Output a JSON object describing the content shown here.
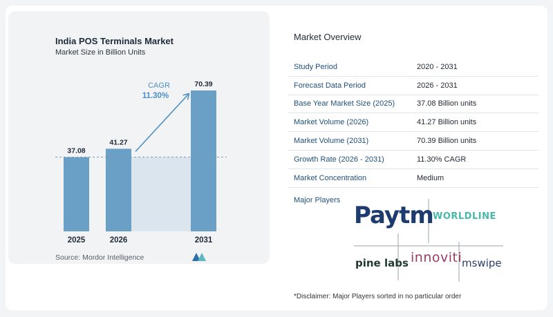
{
  "chart_data": {
    "type": "bar",
    "title": "India POS Terminals Market",
    "subtitle": "Market Size in Billion Units",
    "categories": [
      "2025",
      "2026",
      "2031"
    ],
    "values": [
      37.08,
      41.27,
      70.39
    ],
    "value_labels": [
      "37.08",
      "41.27",
      "70.39"
    ],
    "cagr_label": "CAGR",
    "cagr_value": "11.30%",
    "source": "Source:  Mordor Intelligence",
    "colors": {
      "bar": "#6a9fc6",
      "bar_light": "#dbe5ee",
      "arrow": "#4d8fc2",
      "dash": "#7a98b3",
      "text": "#1e2a3a"
    }
  },
  "overview": {
    "title": "Market Overview",
    "rows": [
      {
        "key": "Study Period",
        "value": "2020 - 2031"
      },
      {
        "key": "Forecast Data Period",
        "value": "2026 - 2031"
      },
      {
        "key": "Base Year Market Size (2025)",
        "value": "37.08 Billion units"
      },
      {
        "key": "Market Volume (2026)",
        "value": "41.27 Billion units"
      },
      {
        "key": "Market Volume (2031)",
        "value": "70.39 Billion units"
      },
      {
        "key": "Growth Rate (2026 - 2031)",
        "value": "11.30% CAGR"
      },
      {
        "key": "Market Concentration",
        "value": "Medium"
      }
    ],
    "major_players_label": "Major Players",
    "players": {
      "paytm": "Paytm",
      "worldline": "WORLDLINE",
      "pinelabs": "pine labs",
      "innoviti": "innoviti",
      "mswipe": "mswipe"
    },
    "disclaimer": "*Disclaimer: Major Players sorted in no particular order"
  }
}
